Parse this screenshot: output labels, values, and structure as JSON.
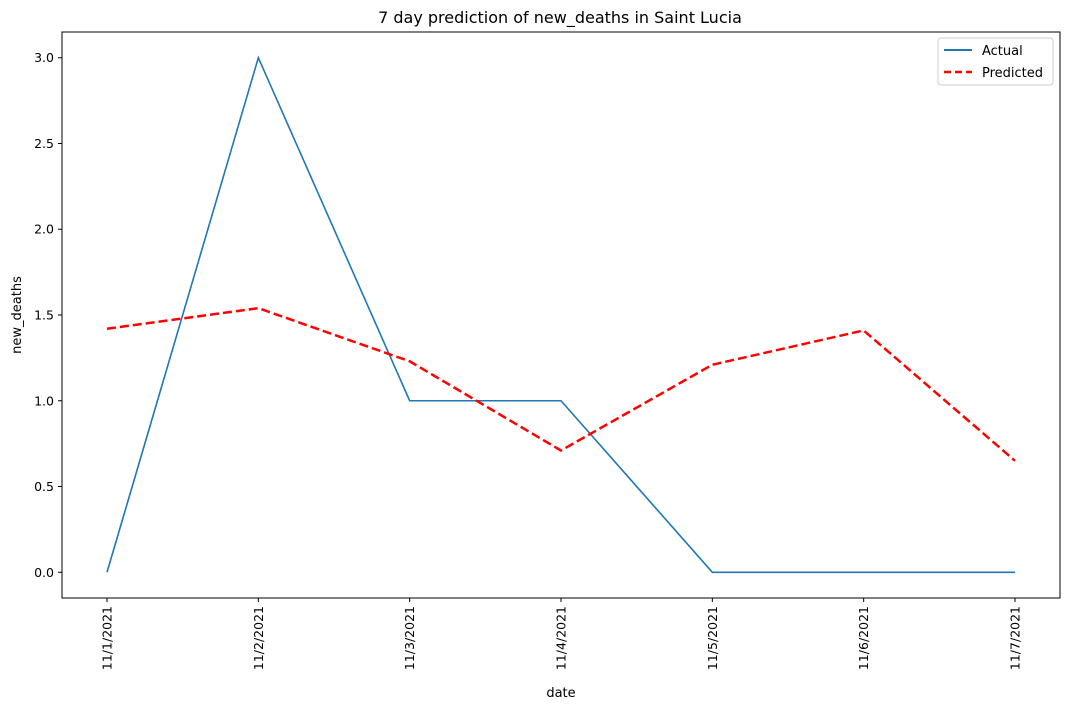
{
  "chart_data": {
    "type": "line",
    "title": "7 day prediction of new_deaths in Saint Lucia",
    "xlabel": "date",
    "ylabel": "new_deaths",
    "categories": [
      "11/1/2021",
      "11/2/2021",
      "11/3/2021",
      "11/4/2021",
      "11/5/2021",
      "11/6/2021",
      "11/7/2021"
    ],
    "yticks": [
      "0.0",
      "0.5",
      "1.0",
      "1.5",
      "2.0",
      "2.5",
      "3.0"
    ],
    "ylim": [
      -0.15,
      3.15
    ],
    "grid": false,
    "legend_position": "top-right",
    "series": [
      {
        "name": "Actual",
        "values": [
          0,
          3,
          1,
          1,
          0,
          0,
          0
        ],
        "color": "#1f77b4",
        "style": "solid"
      },
      {
        "name": "Predicted",
        "values": [
          1.42,
          1.54,
          1.23,
          0.71,
          1.21,
          1.41,
          0.65
        ],
        "color": "#ff0000",
        "style": "dashed"
      }
    ]
  }
}
